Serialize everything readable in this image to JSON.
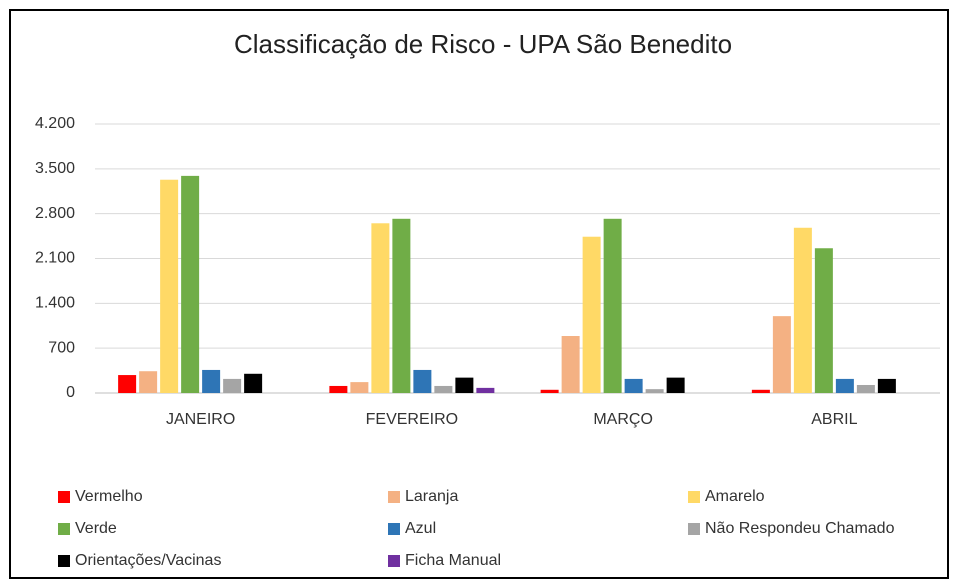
{
  "chart_data": {
    "type": "bar",
    "title": "Classificação de Risco - UPA São Benedito",
    "categories": [
      "JANEIRO",
      "FEVEREIRO",
      "MARÇO",
      "ABRIL"
    ],
    "series": [
      {
        "name": "Vermelho",
        "color": "#ff0000",
        "values": [
          280,
          110,
          50,
          50
        ]
      },
      {
        "name": "Laranja",
        "color": "#f4b183",
        "values": [
          340,
          170,
          890,
          1200
        ]
      },
      {
        "name": "Amarelo",
        "color": "#ffd966",
        "values": [
          3330,
          2650,
          2440,
          2580
        ]
      },
      {
        "name": "Verde",
        "color": "#70ad47",
        "values": [
          3390,
          2720,
          2720,
          2260
        ]
      },
      {
        "name": "Azul",
        "color": "#2e75b6",
        "values": [
          360,
          360,
          220,
          220
        ]
      },
      {
        "name": "Não Respondeu Chamado",
        "color": "#a5a5a5",
        "values": [
          220,
          110,
          60,
          125
        ]
      },
      {
        "name": "Orientações/Vacinas",
        "color": "#000000",
        "values": [
          300,
          240,
          240,
          220
        ]
      },
      {
        "name": "Ficha Manual",
        "color": "#7030a0",
        "values": [
          0,
          80,
          0,
          0
        ]
      }
    ],
    "ylim": [
      0,
      4200
    ],
    "yticks": [
      0,
      700,
      {
        "value": 1400,
        "label": "1.400"
      },
      {
        "value": 2100,
        "label": "2.100"
      },
      {
        "value": 2800,
        "label": "2.800"
      },
      {
        "value": 3500,
        "label": "3.500"
      },
      {
        "value": 4200,
        "label": "4.200"
      }
    ],
    "grid": true,
    "legend": "bottom"
  }
}
